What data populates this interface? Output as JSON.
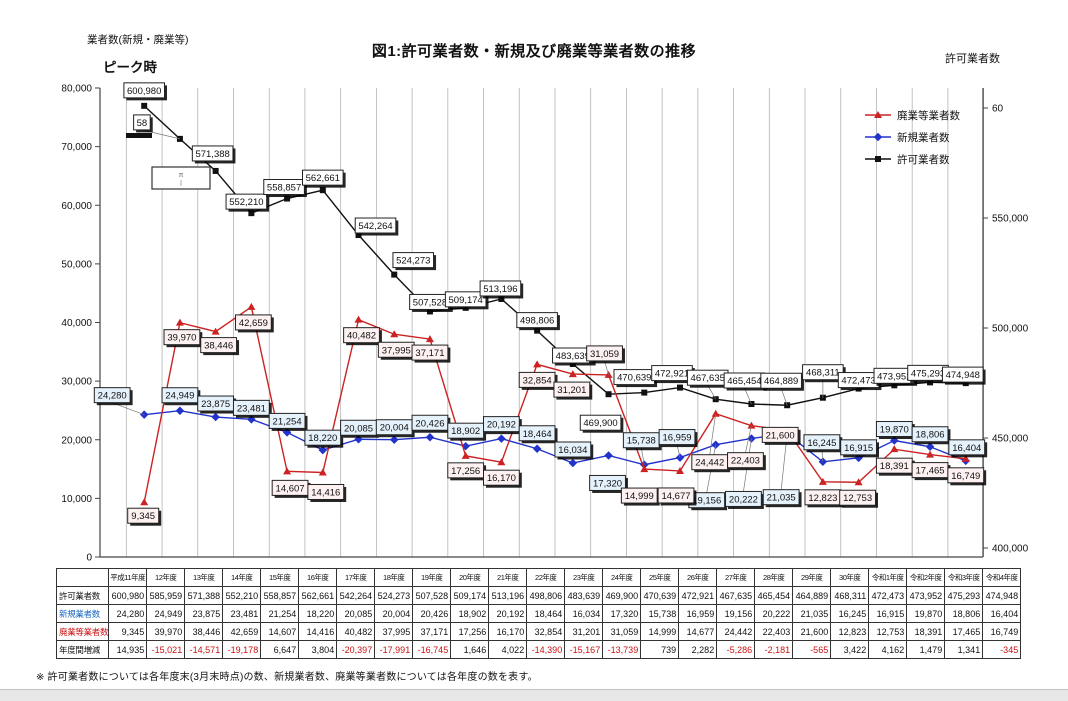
{
  "header": {
    "axis_label_left": "業者数(新規・廃業等)",
    "peak_label": "ピーク時",
    "title": "図1:許可業者数・新規及び廃業等業者数の推移",
    "axis_label_right": "許可業者数"
  },
  "legend": {
    "items": [
      {
        "label": "廃業等業者数",
        "color": "#cc2222",
        "marker": "triangle"
      },
      {
        "label": "新規業者数",
        "color": "#2233cc",
        "marker": "diamond"
      },
      {
        "label": "許可業者数",
        "color": "#111111",
        "marker": "square"
      }
    ]
  },
  "chart_data": {
    "type": "line",
    "title": "図1:許可業者数・新規及び廃業等業者数の推移",
    "categories": [
      "平成11年度",
      "12年度",
      "13年度",
      "14年度",
      "15年度",
      "16年度",
      "17年度",
      "18年度",
      "19年度",
      "20年度",
      "21年度",
      "22年度",
      "23年度",
      "24年度",
      "25年度",
      "26年度",
      "27年度",
      "28年度",
      "29年度",
      "30年度",
      "令和1年度",
      "令和2年度",
      "令和3年度",
      "令和4年度"
    ],
    "series": [
      {
        "name": "許可業者数",
        "axis": "right",
        "color": "#111111",
        "marker": "square",
        "label_bg": "#ffffff",
        "values": [
          600980,
          585959,
          571388,
          552210,
          558857,
          562661,
          542264,
          524273,
          507528,
          509174,
          513196,
          498806,
          483639,
          469900,
          470639,
          472921,
          467635,
          465454,
          464889,
          468311,
          472473,
          473952,
          475293,
          474948
        ]
      },
      {
        "name": "新規業者数",
        "axis": "left",
        "color": "#2233cc",
        "marker": "diamond",
        "label_bg": "#e6f2fb",
        "values": [
          24280,
          24949,
          23875,
          23481,
          21254,
          18220,
          20085,
          20004,
          20426,
          18902,
          20192,
          18464,
          16034,
          17320,
          15738,
          16959,
          19156,
          20222,
          21035,
          16245,
          16915,
          19870,
          18806,
          16404
        ]
      },
      {
        "name": "廃業等業者数",
        "axis": "left",
        "color": "#cc2222",
        "marker": "triangle",
        "label_bg": "#fdf1f1",
        "values": [
          9345,
          39970,
          38446,
          42659,
          14607,
          14416,
          40482,
          37995,
          37171,
          17256,
          16170,
          32854,
          31201,
          31059,
          14999,
          14677,
          24442,
          22403,
          21600,
          12823,
          12753,
          18391,
          17465,
          16749
        ]
      }
    ],
    "axes": {
      "left": {
        "min": 0,
        "max": 80000,
        "step": 10000
      },
      "right": {
        "min": 400000,
        "max": 600000,
        "step": 50000,
        "top_label_displayed": "60"
      }
    },
    "grid": "vertical-category-lines",
    "legend_position": "upper-right",
    "annotations": {
      "truncated_point_label": {
        "series": "許可業者数",
        "category": "12年度",
        "displayed": "58"
      },
      "small_callout_box": {
        "glyph": "π"
      }
    }
  },
  "table": {
    "corner_label": "",
    "row_labels": [
      "許可業者数",
      "新規業者数",
      "廃業等業者数",
      "年度間増減"
    ],
    "yearly_change": [
      14935,
      -15021,
      -14571,
      -19178,
      6647,
      3804,
      -20397,
      -17991,
      -16745,
      1646,
      4022,
      -14390,
      -15167,
      -13739,
      739,
      2282,
      -5286,
      -2181,
      -565,
      3422,
      4162,
      1479,
      1341,
      -345
    ]
  },
  "footnote": {
    "text": "※ 許可業者数については各年度末(3月末時点)の数、新規業者数、廃業等業者数については各年度の数を表す。"
  }
}
